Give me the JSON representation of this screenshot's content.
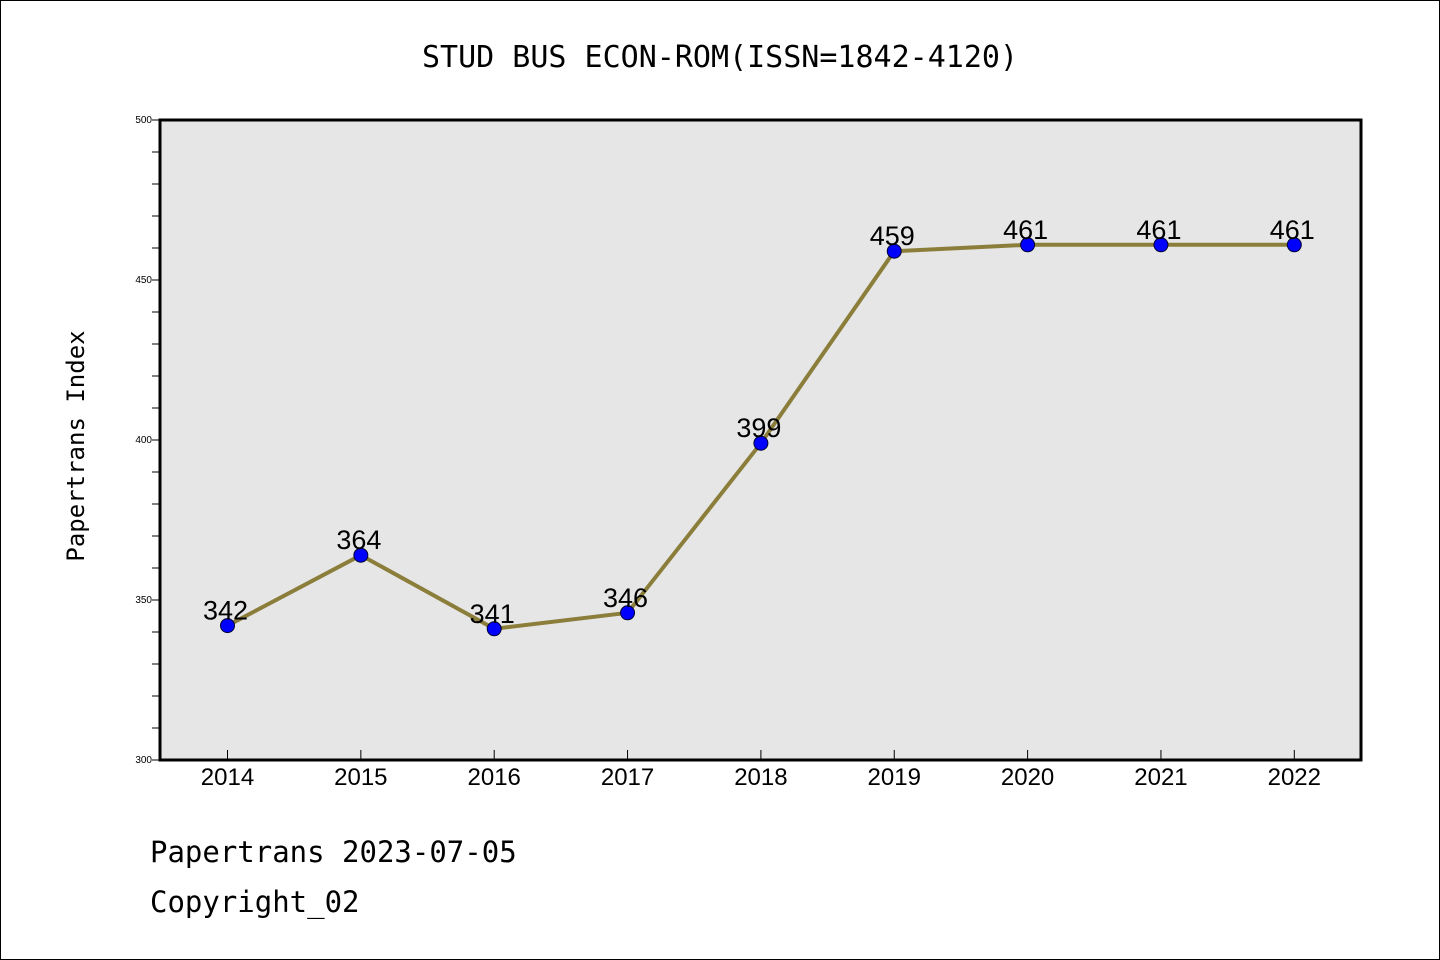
{
  "chart_data": {
    "type": "line",
    "title": "STUD BUS ECON-ROM(ISSN=1842-4120)",
    "xlabel": "",
    "ylabel": "Papertrans Index",
    "categories": [
      "2014",
      "2015",
      "2016",
      "2017",
      "2018",
      "2019",
      "2020",
      "2021",
      "2022"
    ],
    "series": [
      {
        "values": [
          342,
          364,
          341,
          346,
          399,
          459,
          461,
          461,
          461
        ],
        "line_color": "#8b7d3a",
        "marker_color": "#0000ff"
      }
    ],
    "data_labels": [
      "342",
      "364",
      "341",
      "346",
      "399",
      "459",
      "461",
      "461",
      "461"
    ],
    "ylim": [
      300,
      500
    ],
    "yticks": [
      "300",
      "350",
      "400",
      "450",
      "500"
    ],
    "y_minor_step": 10,
    "grid": false,
    "legend": "none",
    "plot_background": "#e6e6e6"
  },
  "footer": {
    "line1": "Papertrans 2023-07-05",
    "line2": "Copyright_02"
  }
}
